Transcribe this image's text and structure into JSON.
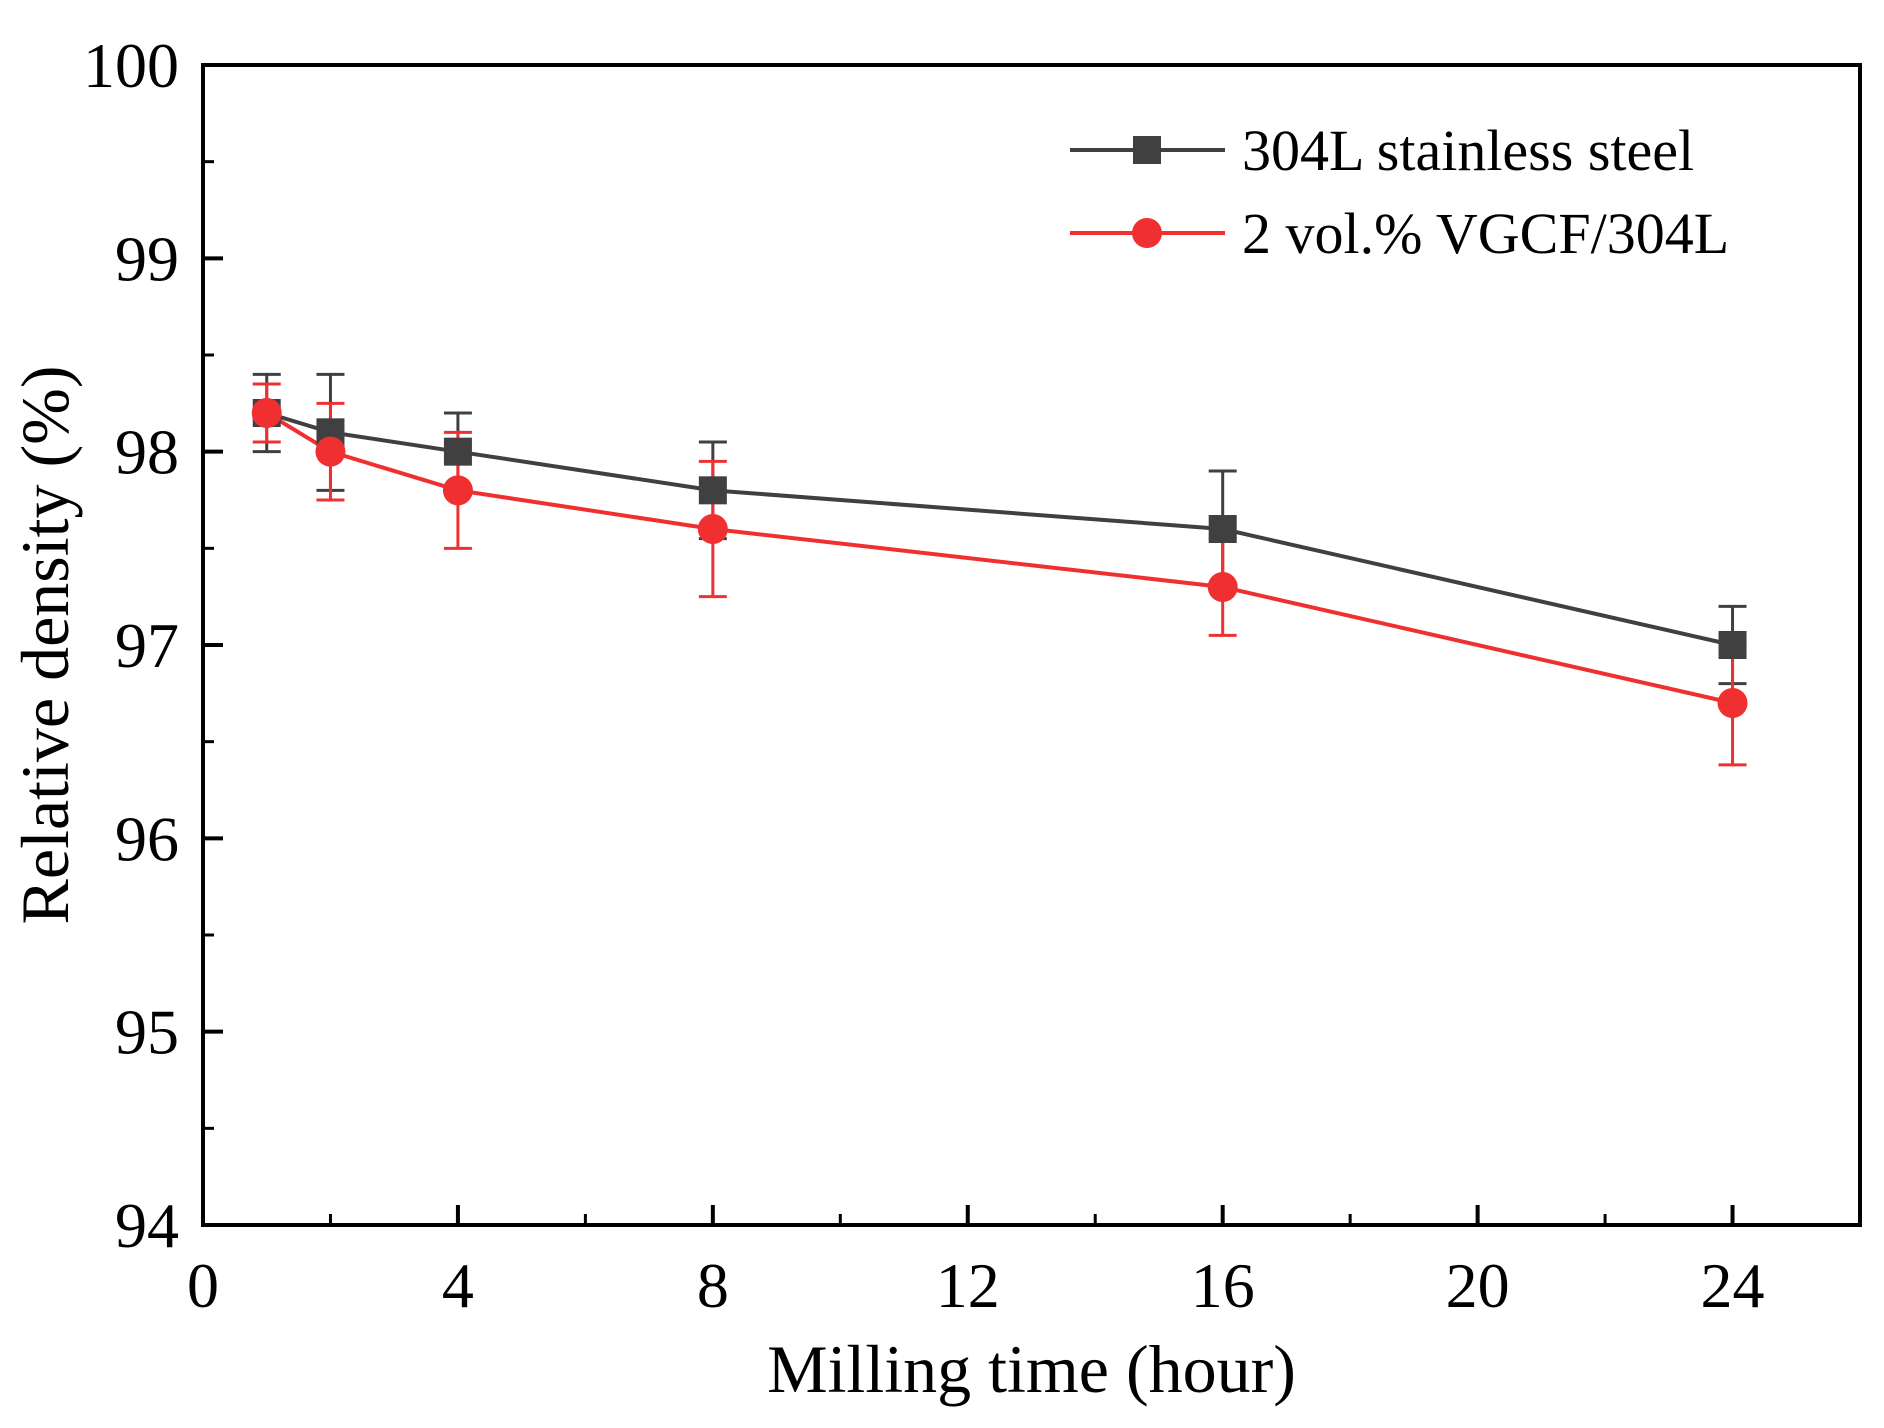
{
  "chart_data": {
    "type": "line",
    "xlabel": "Milling time (hour)",
    "ylabel": "Relative density (%)",
    "xlim": [
      0,
      26
    ],
    "ylim": [
      94,
      100
    ],
    "x_ticks": [
      0,
      4,
      8,
      12,
      16,
      20,
      24
    ],
    "x_tick_labels": [
      "0",
      "4",
      "8",
      "12",
      "16",
      "20",
      "24"
    ],
    "x_minor_ticks": [
      2,
      6,
      10,
      14,
      18,
      22
    ],
    "y_ticks": [
      94,
      95,
      96,
      97,
      98,
      99,
      100
    ],
    "y_tick_labels": [
      "94",
      "95",
      "96",
      "97",
      "98",
      "99",
      "100"
    ],
    "y_minor_ticks": [
      94.5,
      95.5,
      96.5,
      97.5,
      98.5,
      99.5
    ],
    "legend_position": "top-right",
    "series": [
      {
        "name": "304L stainless steel",
        "color": "#404040",
        "marker": "square",
        "x": [
          1,
          2,
          4,
          8,
          16,
          24
        ],
        "y": [
          98.2,
          98.1,
          98.0,
          97.8,
          97.6,
          97.0
        ],
        "error": [
          0.2,
          0.3,
          0.2,
          0.25,
          0.3,
          0.2
        ]
      },
      {
        "name": "2 vol.% VGCF/304L",
        "color": "#f03030",
        "marker": "circle",
        "x": [
          1,
          2,
          4,
          8,
          16,
          24
        ],
        "y": [
          98.2,
          98.0,
          97.8,
          97.6,
          97.3,
          96.7
        ],
        "error": [
          0.15,
          0.25,
          0.3,
          0.35,
          0.25,
          0.32
        ]
      }
    ]
  }
}
